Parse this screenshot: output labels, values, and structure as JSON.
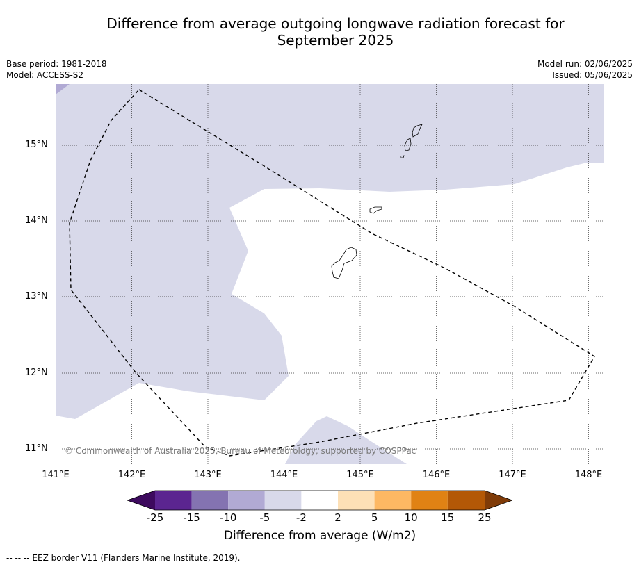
{
  "title": {
    "line1": "Difference from average outgoing longwave radiation forecast for",
    "line2": "September 2025"
  },
  "meta": {
    "base_period": "Base period: 1981-2018",
    "model": "Model: ACCESS-S2",
    "model_run": "Model run: 02/06/2025",
    "issued": "Issued: 05/06/2025"
  },
  "map": {
    "lon_ticks": [
      "141°E",
      "142°E",
      "143°E",
      "144°E",
      "145°E",
      "146°E",
      "147°E",
      "148°E"
    ],
    "lat_ticks": [
      "15°N",
      "14°N",
      "13°N",
      "12°N",
      "11°N"
    ],
    "copyright": "© Commonwealth of Australia 2025, Bureau of Meteorology, supported by COSPPac",
    "colors": {
      "minus5_to_minus2": "#d8d9ea",
      "minus10_to_minus5": "#b1aad4",
      "neutral": "#ffffff"
    }
  },
  "colorbar": {
    "ticks": [
      "-25",
      "-15",
      "-10",
      "-5",
      "-2",
      "2",
      "5",
      "10",
      "15",
      "25"
    ],
    "colors": [
      "#3d0a5e",
      "#5b2590",
      "#8473b1",
      "#b1aad4",
      "#d8d9ea",
      "#ffffff",
      "#fde0b6",
      "#fdb863",
      "#e08214",
      "#b35806",
      "#7f3b08"
    ],
    "label": "Difference from average (W/m2)"
  },
  "footnote": "--  --  -- EEZ border V11 (Flanders Marine Institute, 2019)."
}
